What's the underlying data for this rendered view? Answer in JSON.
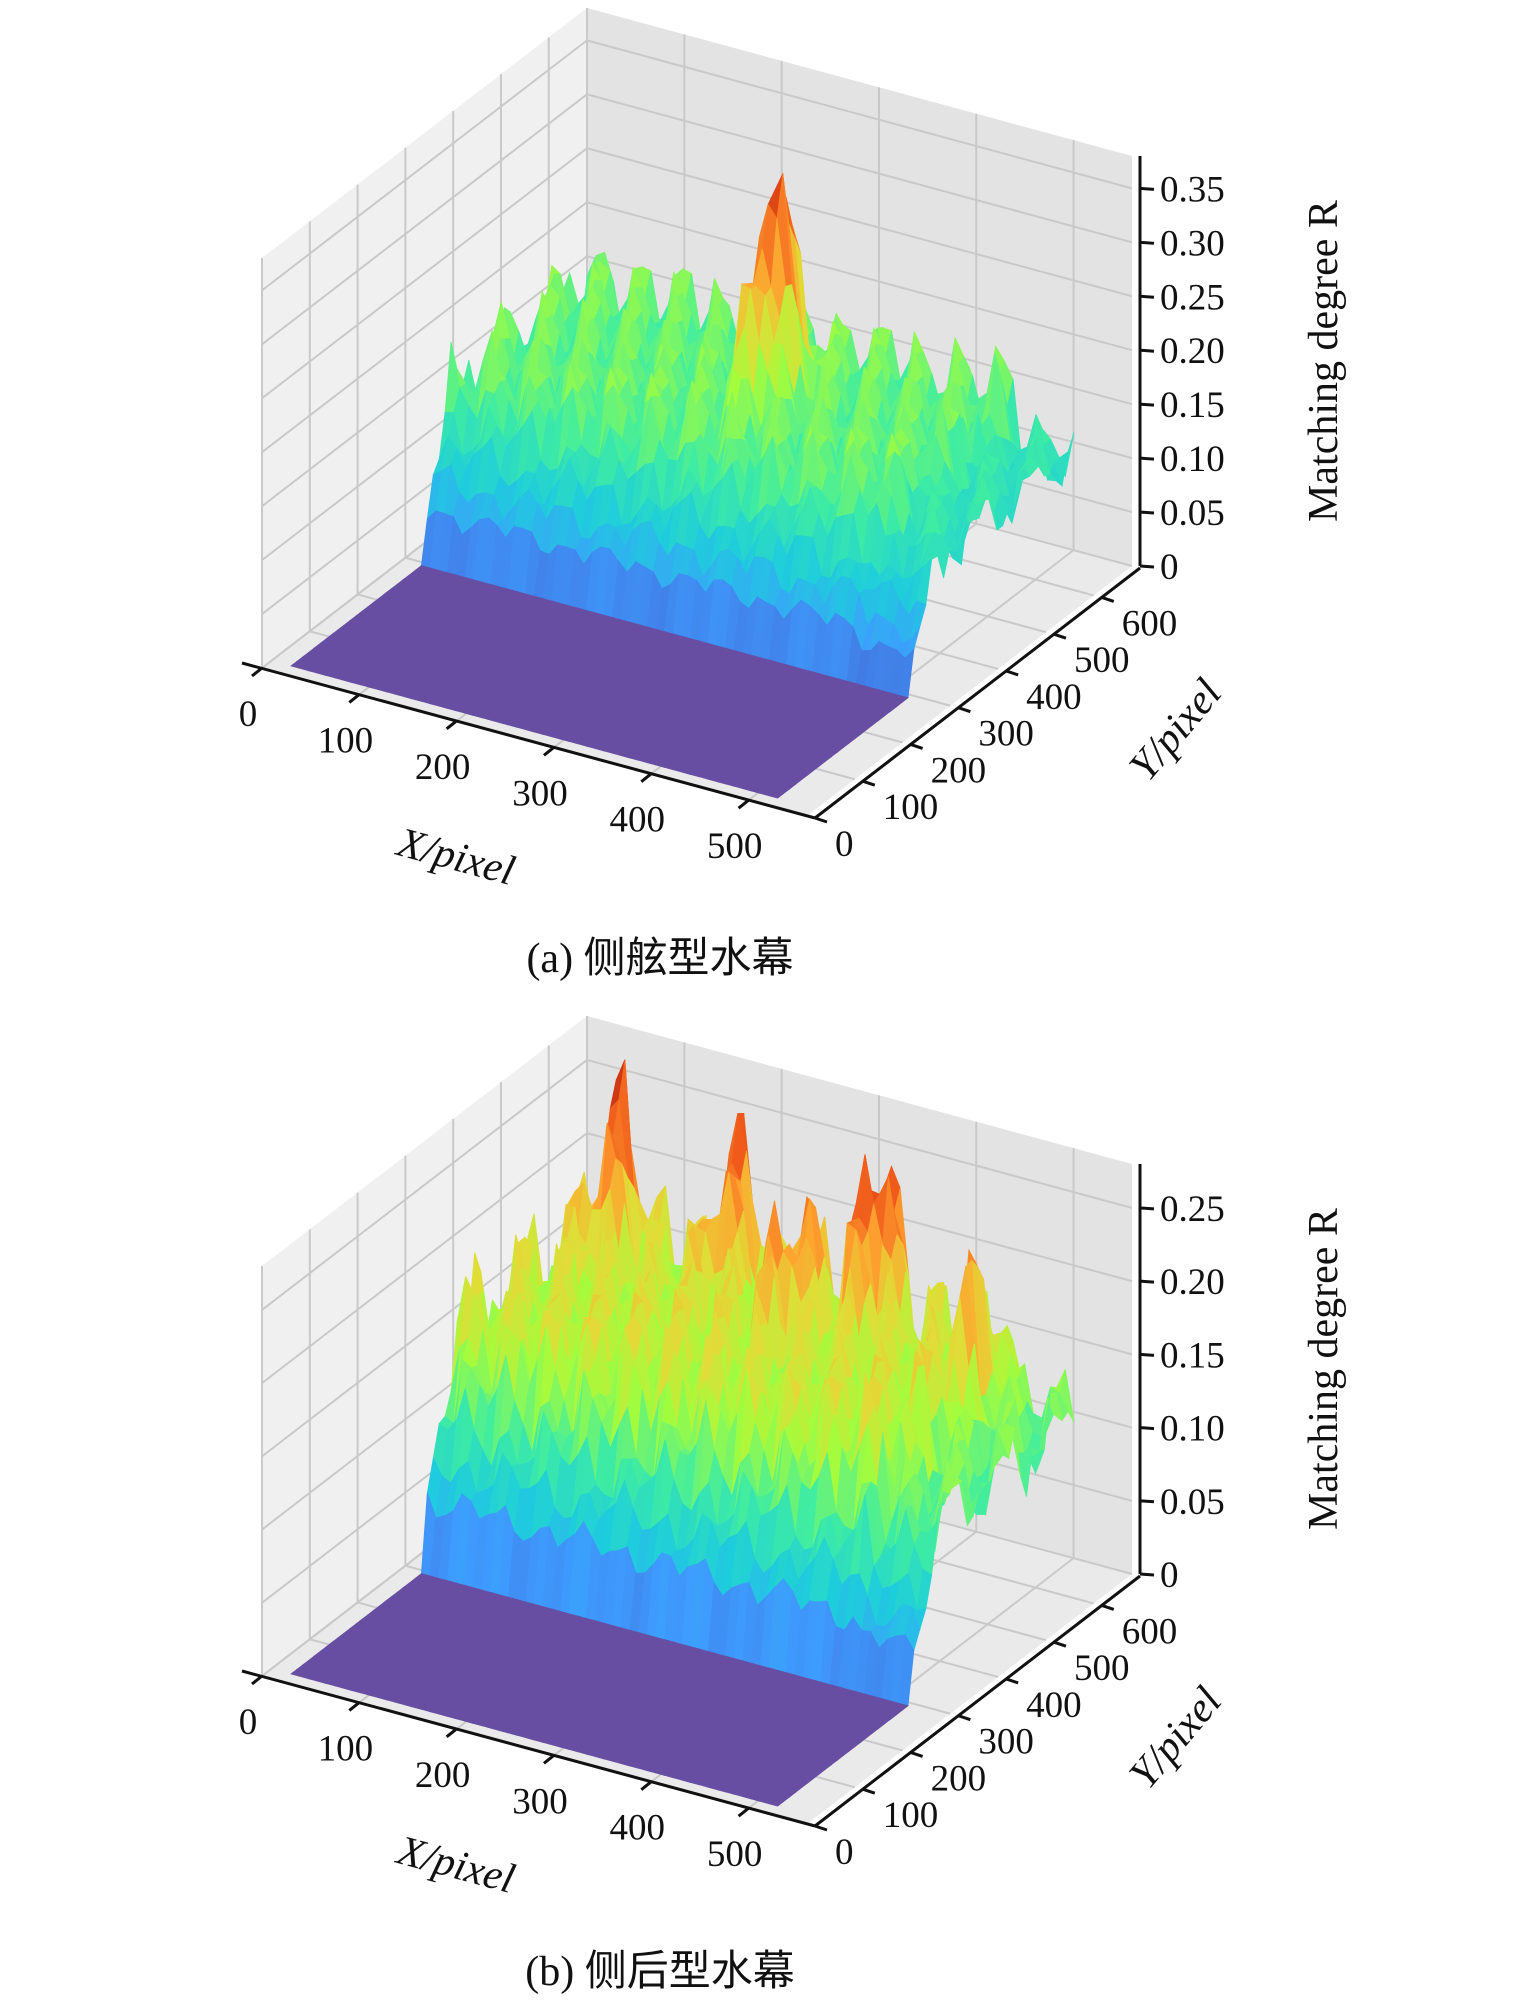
{
  "figure": {
    "caption_a": "(a) 侧舷型水幕",
    "caption_b": "(b) 侧后型水幕"
  },
  "chart_data": [
    {
      "type": "surface3d",
      "caption": "(a) 侧舷型水幕",
      "xlabel": "X/pixel",
      "ylabel": "Y/pixel",
      "zlabel": "Matching degree R",
      "zlabel_italic_part": "R",
      "xticks": [
        "0",
        "100",
        "200",
        "300",
        "400",
        "500"
      ],
      "yticks": [
        "0",
        "100",
        "200",
        "300",
        "400",
        "500",
        "600"
      ],
      "zticks": [
        "0",
        "0.05",
        "0.10",
        "0.15",
        "0.20",
        "0.25",
        "0.30",
        "0.35"
      ],
      "xlim": [
        0,
        560
      ],
      "ylim": [
        0,
        680
      ],
      "zlim": [
        0,
        0.38
      ],
      "colormap": "turbo",
      "surface": {
        "flat_region_y_max": 300,
        "flat_value": 0,
        "base_level": 0.15,
        "noise_amplitude": 0.05,
        "peaks": [
          {
            "x": 280,
            "y": 500,
            "z": 0.35
          }
        ]
      }
    },
    {
      "type": "surface3d",
      "caption": "(b) 侧后型水幕",
      "xlabel": "X/pixel",
      "ylabel": "Y/pixel",
      "zlabel": "Matching degree R",
      "zlabel_italic_part": "R",
      "xticks": [
        "0",
        "100",
        "200",
        "300",
        "400",
        "500"
      ],
      "yticks": [
        "0",
        "100",
        "200",
        "300",
        "400",
        "500",
        "600"
      ],
      "zticks": [
        "0",
        "0.05",
        "0.10",
        "0.15",
        "0.20",
        "0.25"
      ],
      "xlim": [
        0,
        560
      ],
      "ylim": [
        0,
        680
      ],
      "zlim": [
        0,
        0.28
      ],
      "colormap": "turbo",
      "surface": {
        "flat_region_y_max": 300,
        "flat_value": 0,
        "base_level": 0.15,
        "noise_amplitude": 0.05,
        "peaks": [
          {
            "x": 60,
            "y": 620,
            "z": 0.24
          },
          {
            "x": 180,
            "y": 620,
            "z": 0.23
          },
          {
            "x": 270,
            "y": 560,
            "z": 0.22
          },
          {
            "x": 330,
            "y": 620,
            "z": 0.26
          },
          {
            "x": 460,
            "y": 560,
            "z": 0.21
          }
        ]
      }
    }
  ]
}
